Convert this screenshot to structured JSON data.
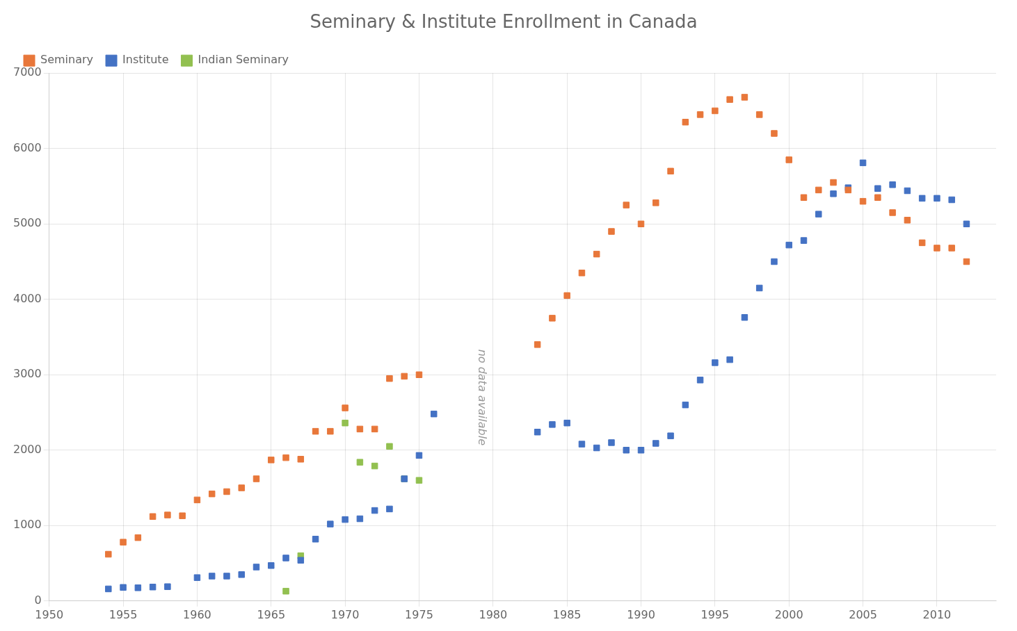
{
  "chart_data": {
    "type": "scatter",
    "title": "Seminary & Institute Enrollment in Canada",
    "marker": "square",
    "series": [
      {
        "name": "Seminary",
        "color": "#E8773A",
        "x": [
          1954,
          1955,
          1956,
          1957,
          1958,
          1959,
          1960,
          1961,
          1962,
          1963,
          1964,
          1965,
          1966,
          1967,
          1968,
          1969,
          1970,
          1971,
          1972,
          1973,
          1974,
          1975,
          1983,
          1984,
          1985,
          1986,
          1987,
          1988,
          1989,
          1990,
          1991,
          1992,
          1993,
          1994,
          1995,
          1996,
          1997,
          1998,
          1999,
          2000,
          2001,
          2002,
          2003,
          2004,
          2005,
          2006,
          2007,
          2008,
          2009,
          2010,
          2011,
          2012
        ],
        "values": [
          620,
          780,
          840,
          1120,
          1140,
          1130,
          1340,
          1420,
          1450,
          1500,
          1620,
          1870,
          1900,
          1880,
          2250,
          2250,
          2560,
          2280,
          2280,
          2950,
          2980,
          3000,
          3400,
          3750,
          4050,
          4350,
          4600,
          4900,
          5250,
          5000,
          5280,
          5700,
          6350,
          6450,
          6500,
          6650,
          6680,
          6450,
          6200,
          5850,
          5350,
          5450,
          5550,
          5450,
          5300,
          5350,
          5150,
          5050,
          4750,
          4680,
          4680,
          4500
        ]
      },
      {
        "name": "Institute",
        "color": "#4472C4",
        "x": [
          1954,
          1955,
          1956,
          1957,
          1958,
          1960,
          1961,
          1962,
          1963,
          1964,
          1965,
          1966,
          1967,
          1968,
          1969,
          1970,
          1971,
          1972,
          1973,
          1974,
          1975,
          1976,
          1983,
          1984,
          1985,
          1986,
          1987,
          1988,
          1989,
          1990,
          1991,
          1992,
          1993,
          1994,
          1995,
          1996,
          1997,
          1998,
          1999,
          2000,
          2001,
          2002,
          2003,
          2004,
          2005,
          2006,
          2007,
          2008,
          2009,
          2010,
          2011,
          2012
        ],
        "values": [
          160,
          180,
          175,
          185,
          190,
          310,
          330,
          330,
          350,
          450,
          470,
          570,
          540,
          820,
          1020,
          1080,
          1090,
          1200,
          1220,
          1620,
          1930,
          2480,
          2240,
          2340,
          2360,
          2080,
          2030,
          2100,
          2000,
          2000,
          2090,
          2190,
          2600,
          2930,
          3160,
          3200,
          3760,
          4150,
          4500,
          4720,
          4780,
          5130,
          5400,
          5480,
          5810,
          5470,
          5520,
          5440,
          5340,
          5340,
          5320,
          5000
        ]
      },
      {
        "name": "Indian Seminary",
        "color": "#92C050",
        "x": [
          1966,
          1967,
          1970,
          1971,
          1972,
          1973,
          1974,
          1975
        ],
        "values": [
          130,
          600,
          2360,
          1840,
          1790,
          2050,
          1620,
          1600
        ]
      }
    ],
    "annotations": [
      {
        "text": "no data available",
        "x": 1979.2,
        "y": 2700
      }
    ],
    "xlim": [
      1950,
      2014
    ],
    "xticks": [
      1950,
      1955,
      1960,
      1965,
      1970,
      1975,
      1980,
      1985,
      1990,
      1995,
      2000,
      2005,
      2010
    ],
    "ylim": [
      0,
      7000
    ],
    "yticks": [
      0,
      1000,
      2000,
      3000,
      4000,
      5000,
      6000,
      7000
    ],
    "grid": true,
    "legend": "upper left"
  }
}
